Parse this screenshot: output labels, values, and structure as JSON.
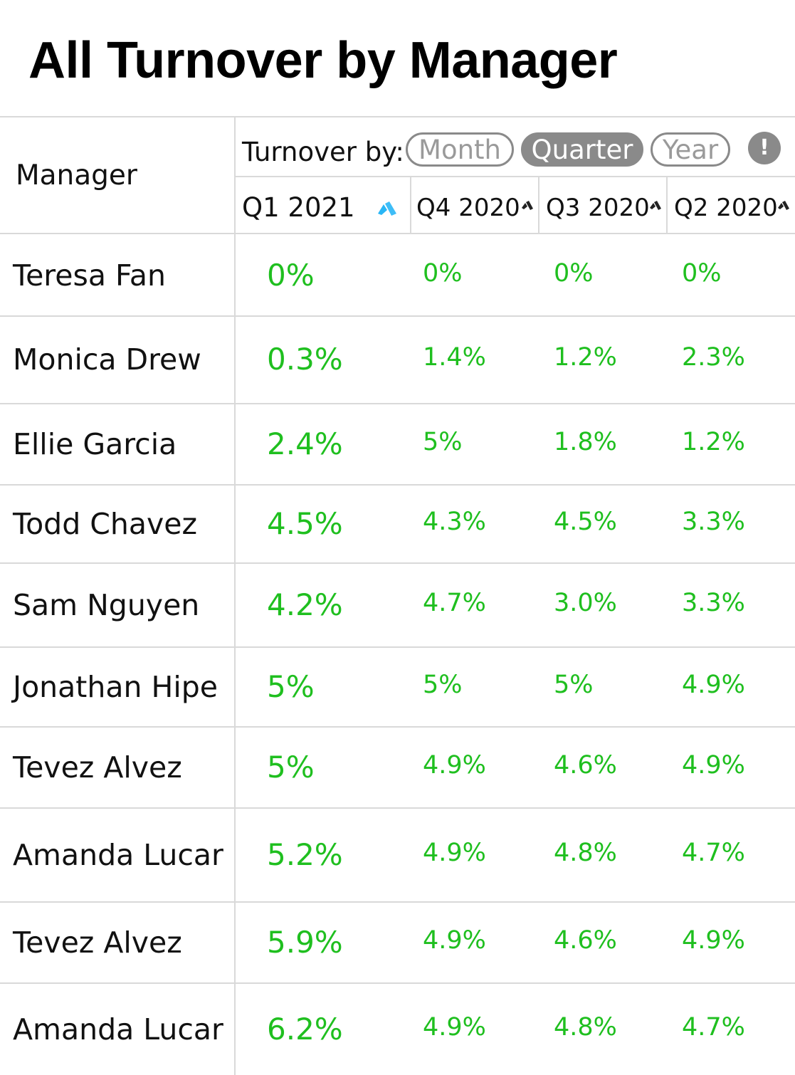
{
  "title": "All Turnover by Manager",
  "header": {
    "manager_label": "Manager",
    "turnover_by_label": "Turnover by:",
    "period_options": [
      {
        "label": "Month",
        "selected": false
      },
      {
        "label": "Quarter",
        "selected": true
      },
      {
        "label": "Year",
        "selected": false
      }
    ],
    "info_label": "!",
    "columns": [
      {
        "label": "Q1 2021",
        "sort_icon": "sort-icon",
        "sort_color": "#29b6f6"
      },
      {
        "label": "Q4 2020",
        "sort_icon": "sort-icon",
        "sort_color": "#222222"
      },
      {
        "label": "Q3 2020",
        "sort_icon": "sort-icon",
        "sort_color": "#222222"
      },
      {
        "label": "Q2 2020",
        "sort_icon": "sort-icon",
        "sort_color": "#222222"
      }
    ]
  },
  "colors": {
    "value_green": "#1fbf1f",
    "pill_gray": "#8a8a8a",
    "grid": "#d9d9d9"
  },
  "rows": [
    {
      "manager": "Teresa Fan",
      "values": [
        "0%",
        "0%",
        "0%",
        "0%"
      ]
    },
    {
      "manager": "Monica Drew",
      "values": [
        "0.3%",
        "1.4%",
        "1.2%",
        "2.3%"
      ]
    },
    {
      "manager": "Ellie Garcia",
      "values": [
        "2.4%",
        "5%",
        "1.8%",
        "1.2%"
      ]
    },
    {
      "manager": "Todd Chavez",
      "values": [
        "4.5%",
        "4.3%",
        "4.5%",
        "3.3%"
      ]
    },
    {
      "manager": "Sam Nguyen",
      "values": [
        "4.2%",
        "4.7%",
        "3.0%",
        "3.3%"
      ]
    },
    {
      "manager": "Jonathan Hipe",
      "values": [
        "5%",
        "5%",
        "5%",
        "4.9%"
      ]
    },
    {
      "manager": "Tevez Alvez",
      "values": [
        "5%",
        "4.9%",
        "4.6%",
        "4.9%"
      ]
    },
    {
      "manager": "Amanda Lucar",
      "values": [
        "5.2%",
        "4.9%",
        "4.8%",
        "4.7%"
      ]
    },
    {
      "manager": "Tevez Alvez",
      "values": [
        "5.9%",
        "4.9%",
        "4.6%",
        "4.9%"
      ]
    },
    {
      "manager": "Amanda Lucar",
      "values": [
        "6.2%",
        "4.9%",
        "4.8%",
        "4.7%"
      ]
    }
  ]
}
